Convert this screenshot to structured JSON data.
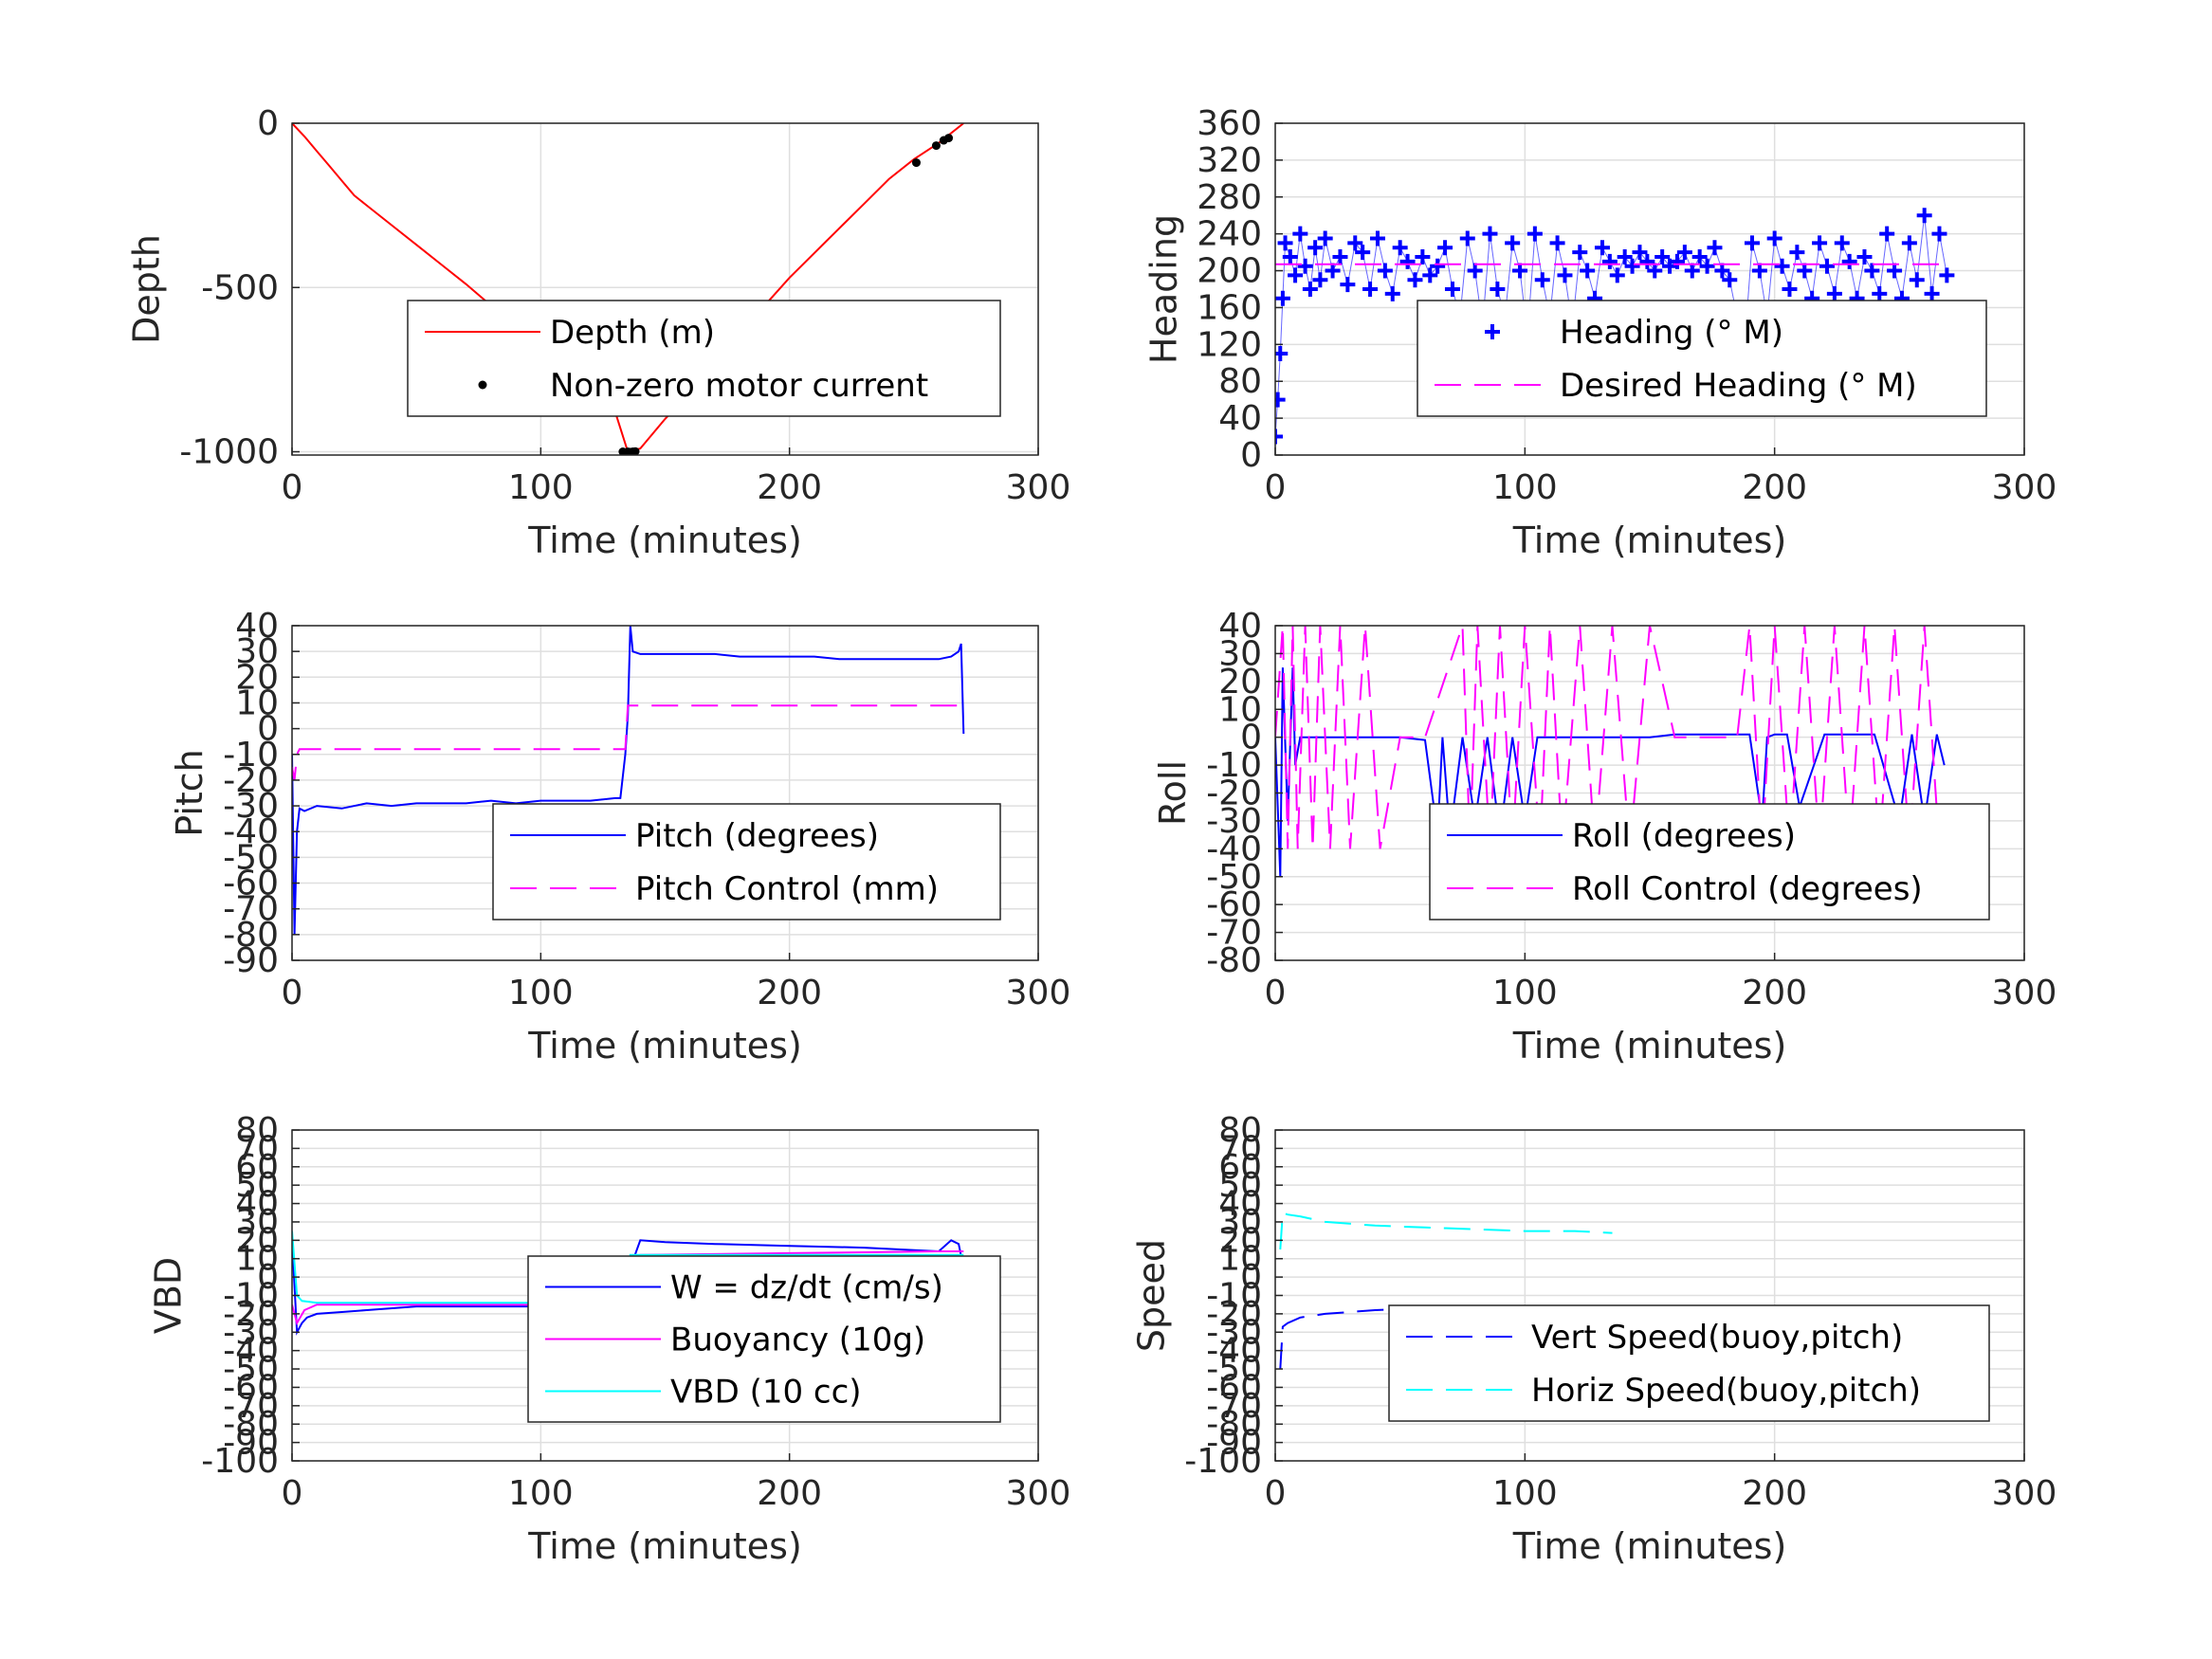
{
  "colors": {
    "red": "#ff0000",
    "blue": "#0000ff",
    "magenta": "#ff00ff",
    "cyan": "#00ffff",
    "black": "#000000",
    "grid": "#dfdfdf",
    "axis": "#262626"
  },
  "chart_data": [
    {
      "id": "depth",
      "type": "line",
      "xlabel": "Time (minutes)",
      "ylabel": "Depth",
      "xlim": [
        0,
        300
      ],
      "ylim": [
        -1010,
        0
      ],
      "xticks": [
        0,
        100,
        200,
        300
      ],
      "yticks": [
        0,
        -500,
        -1000
      ],
      "grid": true,
      "legend_placement": "lower-right",
      "series": [
        {
          "name": "Depth (m)",
          "color": "#ff0000",
          "style": "solid",
          "x": [
            0,
            5,
            10,
            15,
            20,
            25,
            30,
            40,
            50,
            60,
            70,
            80,
            90,
            100,
            110,
            120,
            130,
            135,
            140,
            150,
            160,
            170,
            180,
            190,
            200,
            210,
            220,
            230,
            240,
            250,
            260,
            270
          ],
          "y": [
            0,
            -40,
            -85,
            -130,
            -175,
            -220,
            -250,
            -310,
            -370,
            -430,
            -490,
            -555,
            -620,
            -685,
            -750,
            -815,
            -880,
            -1000,
            -990,
            -900,
            -820,
            -735,
            -645,
            -555,
            -470,
            -395,
            -320,
            -245,
            -170,
            -110,
            -60,
            0
          ]
        },
        {
          "name": "Non-zero motor current",
          "color": "#000000",
          "style": "points",
          "x": [
            133,
            135,
            136,
            137,
            138,
            251,
            259,
            262,
            264
          ],
          "y": [
            -1000,
            -1000,
            -1001,
            -1000,
            -999,
            -120,
            -68,
            -52,
            -45
          ]
        }
      ]
    },
    {
      "id": "heading",
      "type": "scatter",
      "xlabel": "Time (minutes)",
      "ylabel": "Heading",
      "xlim": [
        0,
        300
      ],
      "ylim": [
        0,
        360
      ],
      "xticks": [
        0,
        100,
        200,
        300
      ],
      "yticks": [
        0,
        40,
        80,
        120,
        160,
        200,
        240,
        280,
        320,
        360
      ],
      "grid": true,
      "legend_placement": "lower-right",
      "series": [
        {
          "name": "Heading (° M)",
          "color": "#0000ff",
          "style": "plus",
          "x": [
            0,
            1,
            2,
            3,
            4,
            6,
            8,
            10,
            12,
            14,
            16,
            18,
            20,
            23,
            26,
            29,
            32,
            35,
            38,
            41,
            44,
            47,
            50,
            53,
            56,
            59,
            62,
            65,
            68,
            71,
            74,
            77,
            80,
            83,
            86,
            89,
            92,
            95,
            98,
            101,
            104,
            107,
            110,
            113,
            116,
            119,
            122,
            125,
            128,
            131,
            134,
            137,
            140,
            143,
            146,
            149,
            152,
            155,
            158,
            161,
            164,
            167,
            170,
            173,
            176,
            179,
            182,
            185,
            188,
            191,
            194,
            197,
            200,
            203,
            206,
            209,
            212,
            215,
            218,
            221,
            224,
            227,
            230,
            233,
            236,
            239,
            242,
            245,
            248,
            251,
            254,
            257,
            260,
            263,
            266,
            269
          ],
          "y": [
            20,
            60,
            110,
            170,
            230,
            215,
            195,
            240,
            205,
            180,
            225,
            190,
            235,
            200,
            215,
            185,
            230,
            220,
            180,
            235,
            200,
            175,
            225,
            210,
            190,
            215,
            195,
            205,
            225,
            180,
            150,
            235,
            200,
            140,
            240,
            180,
            150,
            230,
            200,
            130,
            240,
            190,
            150,
            230,
            195,
            140,
            220,
            200,
            170,
            225,
            210,
            195,
            215,
            205,
            220,
            210,
            200,
            215,
            205,
            210,
            220,
            200,
            215,
            205,
            225,
            200,
            190,
            150,
            120,
            230,
            200,
            150,
            235,
            205,
            180,
            220,
            200,
            170,
            230,
            205,
            175,
            230,
            210,
            170,
            215,
            200,
            175,
            240,
            200,
            170,
            230,
            190,
            260,
            175,
            240,
            195
          ]
        },
        {
          "name": "Desired Heading (° M)",
          "color": "#ff00ff",
          "style": "dashed",
          "x": [
            0,
            270
          ],
          "y": [
            207,
            207
          ]
        }
      ]
    },
    {
      "id": "pitch",
      "type": "line",
      "xlabel": "Time (minutes)",
      "ylabel": "Pitch",
      "xlim": [
        0,
        300
      ],
      "ylim": [
        -90,
        40
      ],
      "xticks": [
        0,
        100,
        200,
        300
      ],
      "yticks": [
        40,
        30,
        20,
        10,
        0,
        -10,
        -20,
        -30,
        -40,
        -50,
        -60,
        -70,
        -80,
        -90
      ],
      "grid": true,
      "legend_placement": "lower-right",
      "series": [
        {
          "name": "Pitch (degrees)",
          "color": "#0000ff",
          "style": "solid",
          "x": [
            0,
            1,
            2,
            3,
            5,
            10,
            20,
            30,
            40,
            50,
            60,
            70,
            80,
            90,
            100,
            110,
            120,
            130,
            132,
            134,
            135,
            136,
            137,
            140,
            150,
            160,
            170,
            180,
            190,
            200,
            210,
            220,
            230,
            240,
            250,
            260,
            265,
            268,
            269,
            270
          ],
          "y": [
            -10,
            -80,
            -40,
            -31,
            -32,
            -30,
            -31,
            -29,
            -30,
            -29,
            -29,
            -29,
            -28,
            -29,
            -28,
            -28,
            -28,
            -27,
            -27,
            -10,
            5,
            40,
            30,
            29,
            29,
            29,
            29,
            28,
            28,
            28,
            28,
            27,
            27,
            27,
            27,
            27,
            28,
            30,
            33,
            -2
          ]
        },
        {
          "name": "Pitch Control (mm)",
          "color": "#ff00ff",
          "style": "dashed",
          "x": [
            0,
            1,
            2,
            3,
            130,
            133,
            134,
            135,
            136,
            137,
            270
          ],
          "y": [
            -15,
            -20,
            -10,
            -8,
            -8,
            -8,
            -8,
            9,
            9,
            9,
            9
          ]
        }
      ]
    },
    {
      "id": "roll",
      "type": "line",
      "xlabel": "Time (minutes)",
      "ylabel": "Roll",
      "xlim": [
        0,
        300
      ],
      "ylim": [
        -80,
        40
      ],
      "xticks": [
        0,
        100,
        200,
        300
      ],
      "yticks": [
        40,
        30,
        20,
        10,
        0,
        -10,
        -20,
        -30,
        -40,
        -50,
        -60,
        -70,
        -80
      ],
      "grid": true,
      "legend_placement": "lower-right",
      "series": [
        {
          "name": "Roll (degrees)",
          "color": "#0000ff",
          "style": "solid",
          "x": [
            0,
            2,
            3,
            5,
            7,
            8,
            10,
            15,
            20,
            25,
            30,
            40,
            50,
            60,
            65,
            67,
            70,
            75,
            80,
            85,
            90,
            95,
            100,
            105,
            110,
            120,
            130,
            140,
            150,
            160,
            170,
            180,
            190,
            195,
            197,
            200,
            205,
            210,
            220,
            230,
            240,
            250,
            255,
            260,
            265,
            268
          ],
          "y": [
            0,
            -50,
            25,
            -30,
            25,
            -10,
            0,
            0,
            0,
            0,
            0,
            0,
            0,
            -1,
            -35,
            0,
            -35,
            0,
            -30,
            0,
            -35,
            0,
            -30,
            0,
            0,
            0,
            0,
            0,
            0,
            1,
            1,
            1,
            1,
            -30,
            0,
            1,
            1,
            -25,
            1,
            1,
            1,
            -30,
            1,
            -30,
            1,
            -10
          ]
        },
        {
          "name": "Roll Control (degrees)",
          "color": "#ff00ff",
          "style": "dashed",
          "x": [
            0,
            3,
            5,
            7,
            9,
            12,
            15,
            18,
            22,
            26,
            30,
            36,
            42,
            50,
            60,
            75,
            78,
            81,
            86,
            90,
            95,
            100,
            106,
            110,
            115,
            122,
            128,
            135,
            142,
            150,
            160,
            185,
            190,
            195,
            200,
            206,
            212,
            218,
            224,
            230,
            236,
            242,
            248,
            254,
            260,
            266
          ],
          "y": [
            0,
            40,
            -40,
            40,
            -40,
            40,
            -40,
            40,
            -40,
            40,
            -40,
            40,
            -40,
            0,
            0,
            40,
            -40,
            40,
            -40,
            40,
            -40,
            40,
            -40,
            40,
            -40,
            40,
            -40,
            40,
            -40,
            40,
            0,
            0,
            40,
            -40,
            40,
            -40,
            40,
            -40,
            40,
            -40,
            40,
            -40,
            40,
            -40,
            40,
            -40
          ]
        }
      ]
    },
    {
      "id": "vbd",
      "type": "line",
      "xlabel": "Time (minutes)",
      "ylabel": "VBD",
      "xlim": [
        0,
        300
      ],
      "ylim": [
        -100,
        80
      ],
      "xticks": [
        0,
        100,
        200,
        300
      ],
      "yticks": [
        80,
        70,
        60,
        50,
        40,
        30,
        20,
        10,
        0,
        -10,
        -20,
        -30,
        -40,
        -50,
        -60,
        -70,
        -80,
        -90,
        -100
      ],
      "grid": true,
      "legend_placement": "lower-right",
      "series": [
        {
          "name": "W = dz/dt (cm/s)",
          "color": "#0000ff",
          "style": "solid",
          "x": [
            0,
            2,
            4,
            6,
            10,
            20,
            30,
            50,
            80,
            100,
            120,
            130,
            134,
            136,
            140,
            150,
            170,
            200,
            230,
            260,
            265,
            268,
            270
          ],
          "y": [
            20,
            -30,
            -25,
            -22,
            -20,
            -19,
            -18,
            -16,
            -16,
            -16,
            -16,
            -16,
            -15,
            5,
            20,
            19,
            18,
            17,
            16,
            14,
            20,
            18,
            5
          ]
        },
        {
          "name": "Buoyancy (10g)",
          "color": "#ff00ff",
          "style": "solid",
          "x": [
            0,
            2,
            5,
            10,
            30,
            100,
            130,
            134,
            136,
            140,
            200,
            260,
            270
          ],
          "y": [
            -15,
            -25,
            -18,
            -15,
            -15,
            -15,
            -15,
            -15,
            10,
            12,
            13,
            14,
            14
          ]
        },
        {
          "name": "VBD (10 cc)",
          "color": "#00ffff",
          "style": "solid",
          "x": [
            0,
            2,
            4,
            10,
            50,
            100,
            130,
            134,
            136,
            140,
            200,
            260,
            270
          ],
          "y": [
            25,
            -10,
            -13,
            -14,
            -14,
            -14,
            -14,
            -14,
            12,
            12,
            12,
            12,
            12
          ]
        }
      ]
    },
    {
      "id": "speed",
      "type": "line",
      "xlabel": "Time (minutes)",
      "ylabel": "Speed",
      "xlim": [
        0,
        300
      ],
      "ylim": [
        -100,
        80
      ],
      "xticks": [
        0,
        100,
        200,
        300
      ],
      "yticks": [
        80,
        70,
        60,
        50,
        40,
        30,
        20,
        10,
        0,
        -10,
        -20,
        -30,
        -40,
        -50,
        -60,
        -70,
        -80,
        -90,
        -100
      ],
      "grid": true,
      "legend_placement": "lower-right",
      "series": [
        {
          "name": "Vert Speed(buoy,pitch)",
          "color": "#0000ff",
          "style": "dashed",
          "x": [
            2,
            3,
            5,
            10,
            20,
            40,
            60,
            80,
            100,
            120,
            129
          ],
          "y": [
            -50,
            -27,
            -25,
            -22,
            -20,
            -18,
            -17,
            -17,
            -17,
            -16,
            -16
          ]
        },
        {
          "name": "Horiz Speed(buoy,pitch)",
          "color": "#00ffff",
          "style": "dashed",
          "x": [
            2,
            3,
            5,
            10,
            20,
            40,
            60,
            80,
            100,
            120,
            135
          ],
          "y": [
            15,
            35,
            34,
            33,
            30,
            28,
            27,
            26,
            25,
            25,
            24
          ]
        }
      ]
    }
  ]
}
